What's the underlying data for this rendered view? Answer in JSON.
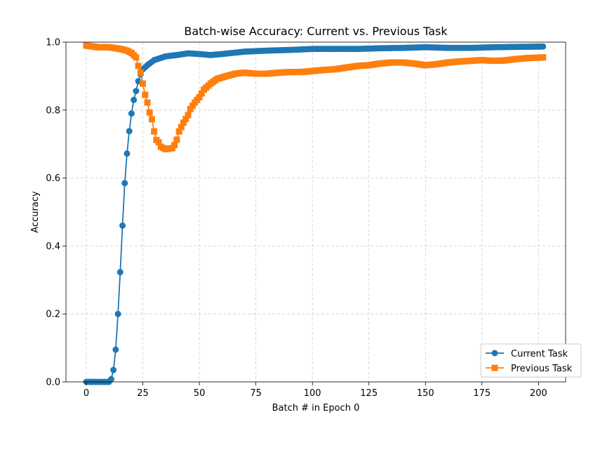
{
  "chart_data": {
    "type": "line",
    "title": "Batch-wise Accuracy: Current vs. Previous Task",
    "xlabel": "Batch # in Epoch 0",
    "ylabel": "Accuracy",
    "xlim": [
      -9,
      212
    ],
    "ylim": [
      0,
      1
    ],
    "xticks": [
      0,
      25,
      50,
      75,
      100,
      125,
      150,
      175,
      200
    ],
    "yticks": [
      0.0,
      0.2,
      0.4,
      0.6,
      0.8,
      1.0
    ],
    "xtick_labels": [
      "0",
      "25",
      "50",
      "75",
      "100",
      "125",
      "150",
      "175",
      "200"
    ],
    "ytick_labels": [
      "0.0",
      "0.2",
      "0.4",
      "0.6",
      "0.8",
      "1.0"
    ],
    "grid": true,
    "legend_position": "lower-right",
    "series": [
      {
        "name": "Current Task",
        "color": "#1f77b4",
        "marker": "circle",
        "anchors": [
          [
            0,
            0.0
          ],
          [
            10,
            0.0
          ],
          [
            11,
            0.008
          ],
          [
            12,
            0.035
          ],
          [
            13,
            0.095
          ],
          [
            14,
            0.2
          ],
          [
            15,
            0.323
          ],
          [
            16,
            0.46
          ],
          [
            17,
            0.585
          ],
          [
            18,
            0.672
          ],
          [
            19,
            0.738
          ],
          [
            20,
            0.79
          ],
          [
            21,
            0.83
          ],
          [
            22,
            0.856
          ],
          [
            23,
            0.885
          ],
          [
            24,
            0.905
          ],
          [
            25,
            0.92
          ],
          [
            27,
            0.932
          ],
          [
            30,
            0.947
          ],
          [
            35,
            0.958
          ],
          [
            40,
            0.962
          ],
          [
            45,
            0.967
          ],
          [
            50,
            0.965
          ],
          [
            55,
            0.962
          ],
          [
            60,
            0.965
          ],
          [
            70,
            0.972
          ],
          [
            80,
            0.975
          ],
          [
            90,
            0.977
          ],
          [
            100,
            0.98
          ],
          [
            110,
            0.98
          ],
          [
            120,
            0.98
          ],
          [
            130,
            0.982
          ],
          [
            140,
            0.983
          ],
          [
            150,
            0.985
          ],
          [
            160,
            0.983
          ],
          [
            170,
            0.983
          ],
          [
            180,
            0.985
          ],
          [
            190,
            0.986
          ],
          [
            202,
            0.987
          ]
        ]
      },
      {
        "name": "Previous Task",
        "color": "#ff7f0e",
        "marker": "square",
        "anchors": [
          [
            0,
            0.99
          ],
          [
            5,
            0.985
          ],
          [
            10,
            0.985
          ],
          [
            15,
            0.98
          ],
          [
            18,
            0.975
          ],
          [
            20,
            0.968
          ],
          [
            22,
            0.955
          ],
          [
            23,
            0.93
          ],
          [
            24,
            0.91
          ],
          [
            25,
            0.878
          ],
          [
            26,
            0.845
          ],
          [
            27,
            0.822
          ],
          [
            28,
            0.793
          ],
          [
            29,
            0.773
          ],
          [
            30,
            0.737
          ],
          [
            31,
            0.712
          ],
          [
            32,
            0.705
          ],
          [
            33,
            0.692
          ],
          [
            35,
            0.685
          ],
          [
            38,
            0.688
          ],
          [
            39,
            0.697
          ],
          [
            40,
            0.713
          ],
          [
            41,
            0.737
          ],
          [
            43,
            0.763
          ],
          [
            45,
            0.785
          ],
          [
            46,
            0.803
          ],
          [
            48,
            0.822
          ],
          [
            50,
            0.838
          ],
          [
            52,
            0.86
          ],
          [
            55,
            0.878
          ],
          [
            58,
            0.892
          ],
          [
            62,
            0.9
          ],
          [
            66,
            0.907
          ],
          [
            70,
            0.91
          ],
          [
            75,
            0.907
          ],
          [
            80,
            0.907
          ],
          [
            85,
            0.91
          ],
          [
            90,
            0.912
          ],
          [
            95,
            0.912
          ],
          [
            100,
            0.915
          ],
          [
            105,
            0.918
          ],
          [
            110,
            0.92
          ],
          [
            115,
            0.925
          ],
          [
            120,
            0.93
          ],
          [
            125,
            0.932
          ],
          [
            130,
            0.937
          ],
          [
            135,
            0.94
          ],
          [
            140,
            0.94
          ],
          [
            145,
            0.937
          ],
          [
            150,
            0.932
          ],
          [
            155,
            0.935
          ],
          [
            160,
            0.94
          ],
          [
            165,
            0.943
          ],
          [
            170,
            0.945
          ],
          [
            175,
            0.947
          ],
          [
            180,
            0.945
          ],
          [
            185,
            0.946
          ],
          [
            190,
            0.95
          ],
          [
            195,
            0.953
          ],
          [
            202,
            0.955
          ]
        ]
      }
    ]
  }
}
